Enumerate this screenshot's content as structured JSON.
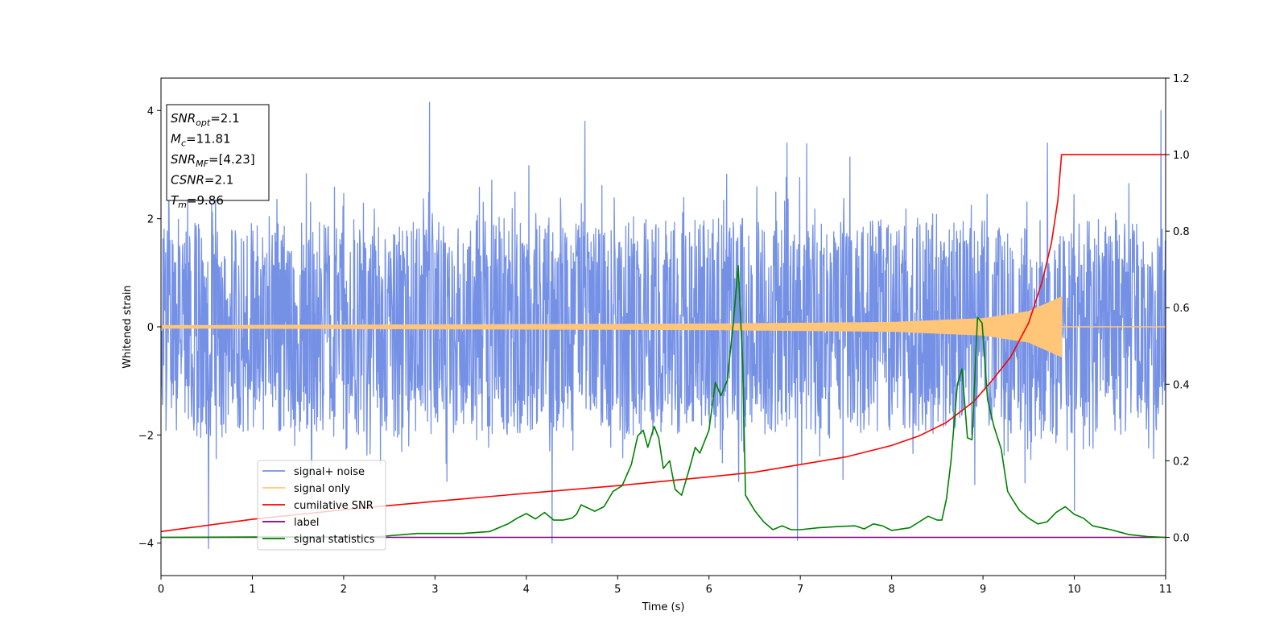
{
  "chart_data": {
    "type": "line",
    "title": "",
    "xlabel": "Time (s)",
    "ylabel": "Whitened strain",
    "xlim": [
      0,
      11
    ],
    "ylim": [
      -4.6,
      4.6
    ],
    "y2lim": [
      -0.1,
      1.2
    ],
    "x_ticks": [
      0,
      1,
      2,
      3,
      4,
      5,
      6,
      7,
      8,
      9,
      10,
      11
    ],
    "x_tick_labels": [
      "0",
      "1",
      "2",
      "3",
      "4",
      "5",
      "6",
      "7",
      "8",
      "9",
      "10",
      "11"
    ],
    "y_ticks": [
      -4,
      -2,
      0,
      2,
      4
    ],
    "y_tick_labels": [
      "−4",
      "−2",
      "0",
      "2",
      "4"
    ],
    "y2_ticks": [
      0.0,
      0.2,
      0.4,
      0.6,
      0.8,
      1.0,
      1.2
    ],
    "y2_tick_labels": [
      "0.0",
      "0.2",
      "0.4",
      "0.6",
      "0.8",
      "1.0",
      "1.2"
    ],
    "grid": false,
    "legend_position": "lower-left",
    "annotation": {
      "lines": [
        {
          "var": "SNR",
          "sub": "opt",
          "value": "=2.1"
        },
        {
          "var": "M",
          "sub": "c",
          "value": "=11.81"
        },
        {
          "var": "SNR",
          "sub": "MF",
          "value": "=[4.23]"
        },
        {
          "var": "CSNR",
          "sub": "",
          "value": "=2.1"
        },
        {
          "var": "T",
          "sub": "m",
          "value": "=9.86"
        }
      ]
    },
    "series": [
      {
        "name": "signal+ noise",
        "color": "#7591e6",
        "axis": "left",
        "kind": "noise",
        "x_range": [
          0,
          11
        ],
        "typical_band": [
          -1.9,
          1.9
        ],
        "peaks": [
          {
            "x": 0.52,
            "y": -4.1
          },
          {
            "x": 2.94,
            "y": 4.15
          },
          {
            "x": 4.28,
            "y": -4.0
          },
          {
            "x": 4.64,
            "y": 3.8
          },
          {
            "x": 6.97,
            "y": -3.95
          },
          {
            "x": 10.0,
            "y": -3.4
          },
          {
            "x": 10.95,
            "y": 4.0
          }
        ]
      },
      {
        "name": "signal only",
        "color": "#ffc67a",
        "axis": "left",
        "kind": "chirp",
        "x_range": [
          0,
          9.86
        ],
        "amplitude": [
          [
            0,
            0.02
          ],
          [
            6.0,
            0.05
          ],
          [
            8.0,
            0.08
          ],
          [
            9.0,
            0.15
          ],
          [
            9.5,
            0.28
          ],
          [
            9.86,
            0.55
          ]
        ]
      },
      {
        "name": "cumilative SNR",
        "color": "#ff0000",
        "axis": "right",
        "x": [
          0,
          1,
          2,
          3,
          4,
          5,
          6,
          6.5,
          7,
          7.5,
          8,
          8.3,
          8.6,
          8.9,
          9.1,
          9.3,
          9.5,
          9.65,
          9.75,
          9.82,
          9.86,
          10,
          11
        ],
        "y": [
          0.015,
          0.047,
          0.072,
          0.094,
          0.115,
          0.135,
          0.158,
          0.17,
          0.19,
          0.21,
          0.24,
          0.265,
          0.3,
          0.355,
          0.41,
          0.47,
          0.56,
          0.67,
          0.77,
          0.88,
          1.0,
          1.0,
          1.0
        ]
      },
      {
        "name": "label",
        "color": "#800080",
        "axis": "right",
        "x": [
          0,
          11
        ],
        "y": [
          0.0,
          0.0
        ]
      },
      {
        "name": "signal statistics",
        "color": "#008000",
        "axis": "right",
        "x": [
          0,
          2.4,
          2.8,
          3.3,
          3.6,
          3.8,
          3.9,
          4.0,
          4.1,
          4.2,
          4.3,
          4.4,
          4.5,
          4.55,
          4.6,
          4.75,
          4.85,
          4.95,
          5.05,
          5.15,
          5.22,
          5.28,
          5.33,
          5.4,
          5.45,
          5.5,
          5.57,
          5.63,
          5.7,
          5.78,
          5.85,
          5.9,
          6.0,
          6.07,
          6.13,
          6.2,
          6.27,
          6.32,
          6.37,
          6.4,
          6.5,
          6.6,
          6.7,
          6.8,
          6.9,
          7.0,
          7.2,
          7.4,
          7.6,
          7.7,
          7.8,
          7.9,
          8.0,
          8.2,
          8.4,
          8.5,
          8.55,
          8.6,
          8.65,
          8.72,
          8.77,
          8.83,
          8.88,
          8.94,
          8.99,
          9.05,
          9.12,
          9.2,
          9.27,
          9.32,
          9.4,
          9.5,
          9.6,
          9.7,
          9.8,
          9.9,
          10.0,
          10.1,
          10.2,
          10.4,
          10.6,
          10.8,
          11
        ],
        "y": [
          0.0,
          0.002,
          0.01,
          0.01,
          0.015,
          0.035,
          0.05,
          0.062,
          0.048,
          0.065,
          0.045,
          0.045,
          0.05,
          0.06,
          0.085,
          0.068,
          0.08,
          0.12,
          0.135,
          0.19,
          0.265,
          0.28,
          0.235,
          0.29,
          0.26,
          0.18,
          0.2,
          0.125,
          0.11,
          0.175,
          0.235,
          0.22,
          0.28,
          0.405,
          0.37,
          0.41,
          0.57,
          0.71,
          0.45,
          0.11,
          0.07,
          0.04,
          0.02,
          0.03,
          0.02,
          0.02,
          0.025,
          0.028,
          0.03,
          0.022,
          0.035,
          0.03,
          0.018,
          0.025,
          0.055,
          0.045,
          0.045,
          0.1,
          0.2,
          0.4,
          0.44,
          0.26,
          0.255,
          0.575,
          0.56,
          0.36,
          0.29,
          0.23,
          0.12,
          0.1,
          0.07,
          0.05,
          0.035,
          0.04,
          0.065,
          0.08,
          0.06,
          0.05,
          0.03,
          0.02,
          0.007,
          0.002,
          0.0
        ]
      }
    ]
  }
}
